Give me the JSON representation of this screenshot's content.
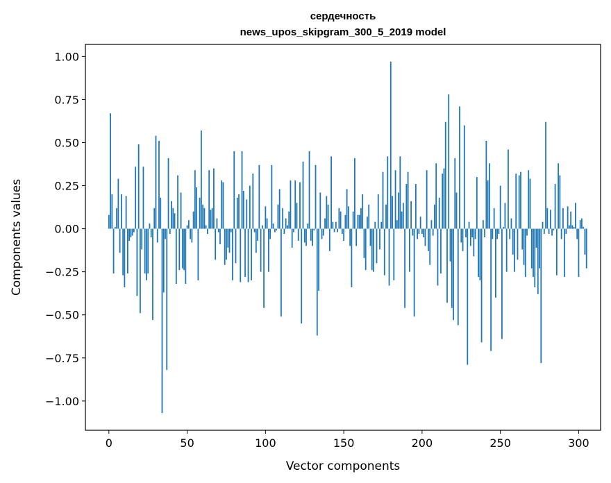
{
  "chart_data": {
    "type": "bar",
    "title": "сердечность",
    "subtitle": "news_upos_skipgram_300_5_2019 model",
    "xlabel": "Vector components",
    "ylabel": "Components values",
    "xlim": [
      -15,
      314
    ],
    "ylim": [
      -1.17,
      1.07
    ],
    "xticks": [
      0,
      50,
      100,
      150,
      200,
      250,
      300
    ],
    "yticks": [
      -1.0,
      -0.75,
      -0.5,
      -0.25,
      0.0,
      0.25,
      0.5,
      0.75,
      1.0
    ],
    "ytick_labels": [
      "−1.00",
      "−0.75",
      "−0.50",
      "−0.25",
      "0.00",
      "0.25",
      "0.50",
      "0.75",
      "1.00"
    ],
    "xtick_labels": [
      "0",
      "50",
      "100",
      "150",
      "200",
      "250",
      "300"
    ],
    "bar_color": "#1f77b4",
    "grid": false,
    "values": [
      0.08,
      0.67,
      0.2,
      -0.26,
      0.01,
      0.12,
      0.29,
      -0.14,
      0.2,
      -0.27,
      -0.34,
      0.19,
      -0.26,
      -0.07,
      -0.05,
      -0.04,
      -0.02,
      0.36,
      -0.39,
      0.49,
      -0.49,
      -0.12,
      0.36,
      -0.26,
      -0.3,
      -0.26,
      0.03,
      -0.05,
      -0.53,
      0.12,
      0.54,
      -0.08,
      0.51,
      0.18,
      -1.07,
      -0.37,
      -0.06,
      -0.82,
      0.41,
      -0.03,
      0.16,
      0.12,
      0.09,
      -0.32,
      0.31,
      -0.24,
      0.21,
      -0.23,
      -0.24,
      -0.32,
      0.02,
      0.05,
      -0.06,
      -0.08,
      0.1,
      0.34,
      0.24,
      -0.3,
      0.18,
      0.57,
      0.14,
      0.12,
      0.02,
      -0.03,
      0.34,
      0.11,
      0.12,
      0.35,
      -0.18,
      0.06,
      -0.02,
      -0.09,
      0.28,
      0.27,
      -0.21,
      -0.18,
      -0.11,
      -0.14,
      -0.02,
      -0.3,
      0.45,
      -0.2,
      0.18,
      0.2,
      -0.31,
      0.45,
      0.22,
      -0.28,
      0.17,
      -0.31,
      0.25,
      -0.3,
      0.32,
      -0.02,
      -0.14,
      -0.07,
      0.37,
      -0.25,
      0.02,
      -0.46,
      0.13,
      0.06,
      -0.25,
      -0.06,
      0.37,
      0.03,
      -0.02,
      -0.01,
      0.14,
      0.23,
      -0.51,
      0.12,
      -0.03,
      0.06,
      0.02,
      0.1,
      0.28,
      -0.11,
      -0.02,
      0.28,
      0.15,
      -0.07,
      0.27,
      -0.55,
      0.39,
      -0.08,
      -0.1,
      0.03,
      0.45,
      -0.07,
      -0.1,
      -0.01,
      0.37,
      -0.62,
      -0.36,
      0.21,
      -0.06,
      -0.04,
      0.06,
      0.19,
      0.14,
      -0.13,
      0.42,
      0.04,
      -0.02,
      0.04,
      -0.02,
      0.12,
      0.1,
      -0.03,
      -0.07,
      0.08,
      0.23,
      0.13,
      -0.1,
      -0.34,
      0.1,
      0.41,
      -0.1,
      0.08,
      0.08,
      0.12,
      0.2,
      -0.17,
      -0.24,
      0.07,
      0.14,
      -0.1,
      -0.24,
      -0.25,
      0.04,
      -0.2,
      0.2,
      -0.12,
      0.04,
      0.33,
      -0.27,
      0.14,
      0.42,
      -0.33,
      0.97,
      0.19,
      -0.3,
      0.34,
      0.05,
      0.21,
      0.42,
      0.1,
      0.15,
      -0.46,
      0.26,
      0.33,
      -0.25,
      0.16,
      -0.04,
      -0.51,
      0.26,
      -0.06,
      -0.03,
      0.07,
      -0.03,
      -0.05,
      -0.1,
      0.34,
      -0.13,
      -0.21,
      0.05,
      -0.04,
      0.14,
      0.38,
      -0.33,
      0.18,
      -0.26,
      0.32,
      0.35,
      0.62,
      -0.43,
      0.78,
      -0.19,
      -0.46,
      -0.53,
      0.41,
      0.21,
      -0.56,
      0.71,
      -0.08,
      -0.13,
      0.6,
      -0.05,
      -0.79,
      0.04,
      -0.1,
      -0.05,
      -0.16,
      -0.06,
      0.3,
      -0.28,
      -0.3,
      -0.66,
      0.05,
      -0.05,
      0.51,
      0.28,
      0.38,
      -0.71,
      -0.06,
      0.12,
      -0.4,
      -0.06,
      -0.03,
      0.25,
      -0.64,
      0.01,
      0.15,
      -0.25,
      0.46,
      -0.06,
      0.06,
      -0.15,
      -0.25,
      0.32,
      -0.18,
      0.31,
      0.33,
      -0.12,
      -0.21,
      -0.28,
      -0.04,
      0.34,
      0.29,
      -0.23,
      -0.28,
      -0.34,
      -0.11,
      -0.38,
      -0.23,
      -0.78,
      0.04,
      -0.03,
      0.62,
      0.12,
      -0.03,
      0.11,
      -0.04,
      -0.01,
      0.26,
      -0.27,
      0.38,
      0.31,
      -0.06,
      0.12,
      -0.28,
      -0.03,
      0.13,
      0.02,
      0.1,
      0.02,
      0.01,
      0.15,
      -0.06,
      -0.28,
      0.05,
      0.06,
      0.01,
      -0.15,
      -0.23
    ]
  }
}
